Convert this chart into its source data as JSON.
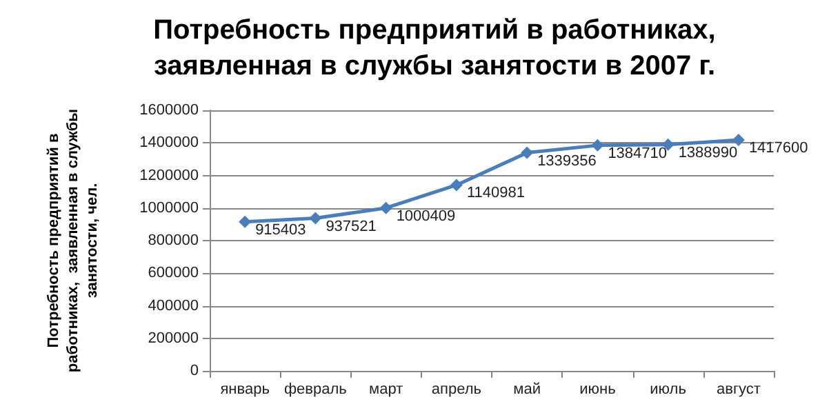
{
  "chart_data": {
    "type": "line",
    "title": "Потребность предприятий в работниках,\nзаявленная в службы занятости в 2007 г.",
    "ylabel": "Потребность предприятий в\nработниках,  заявленная в службы\nзанятости, чел.",
    "categories": [
      "январь",
      "февраль",
      "март",
      "апрель",
      "май",
      "июнь",
      "июль",
      "август"
    ],
    "series": [
      {
        "color": "#4a7ebb",
        "values": [
          915403,
          937521,
          1000409,
          1140981,
          1339356,
          1384710,
          1388990,
          1417600
        ]
      }
    ],
    "ylim": [
      0,
      1600000
    ],
    "yticks": [
      0,
      200000,
      400000,
      600000,
      800000,
      1000000,
      1200000,
      1400000,
      1600000
    ],
    "grid": "y",
    "marker": "diamond",
    "data_labels": true
  }
}
